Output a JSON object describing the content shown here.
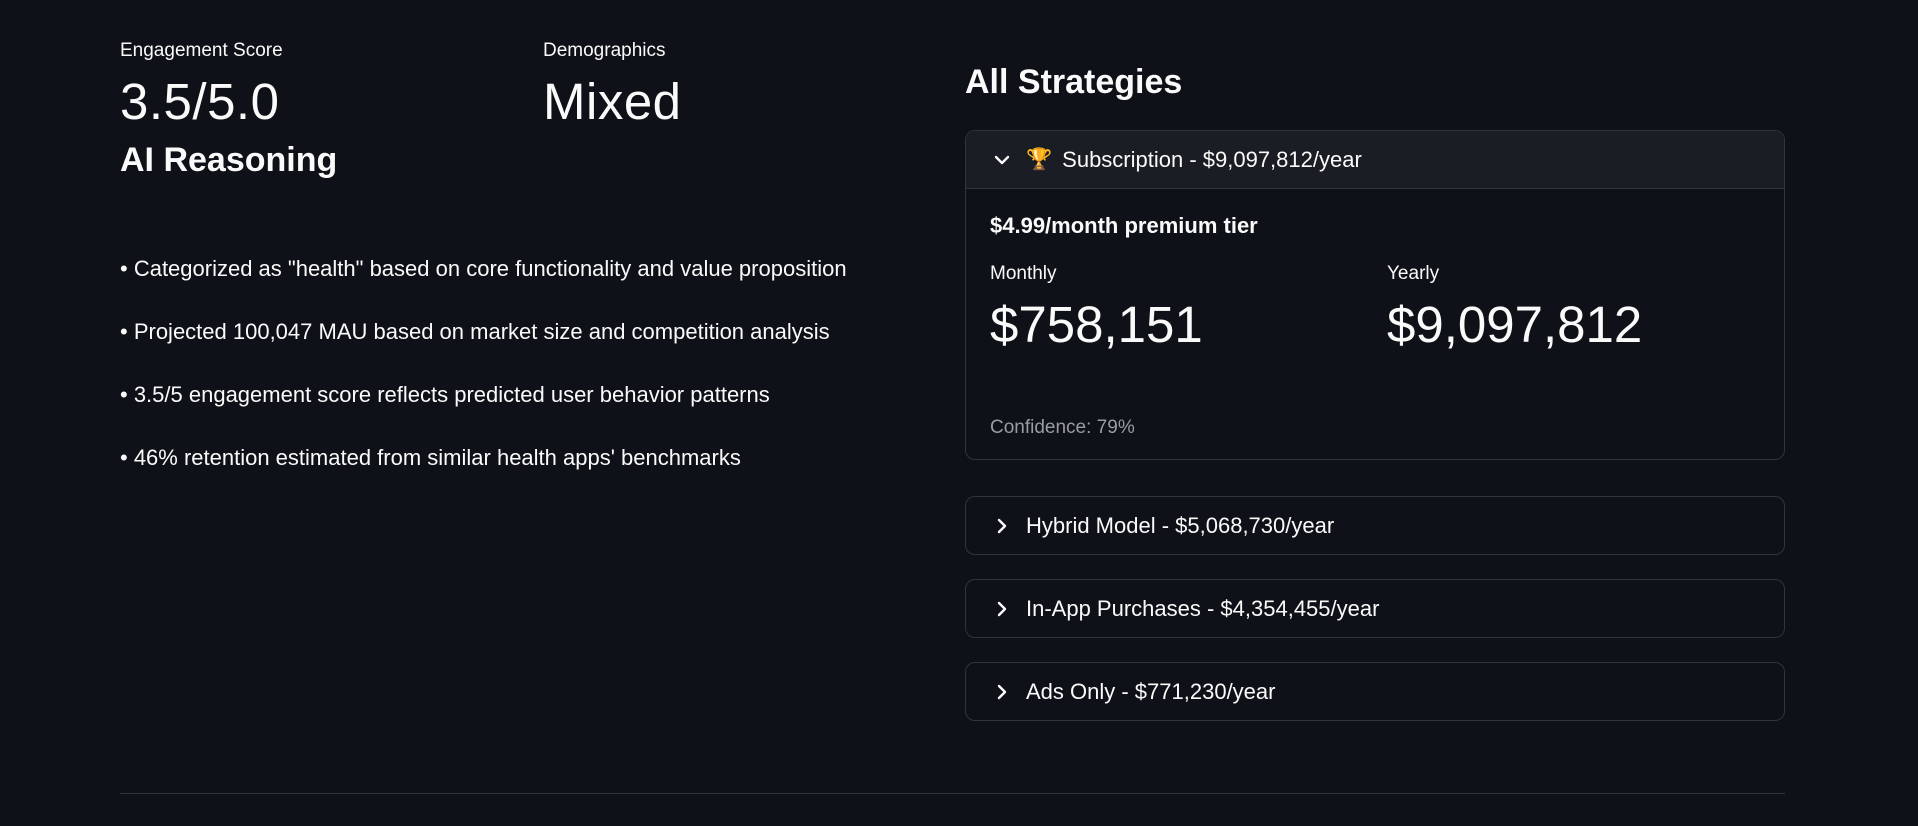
{
  "metrics": {
    "engagement": {
      "label": "Engagement Score",
      "value": "3.5/5.0"
    },
    "demographics": {
      "label": "Demographics",
      "value": "Mixed"
    }
  },
  "reasoning": {
    "title": "AI Reasoning",
    "items": [
      "• Categorized as \"health\" based on core functionality and value proposition",
      "• Projected 100,047 MAU based on market size and competition analysis",
      "• 3.5/5 engagement score reflects predicted user behavior patterns",
      "• 46% retention estimated from similar health apps' benchmarks"
    ]
  },
  "strategies": {
    "title": "All Strategies",
    "items": [
      {
        "icon": "trophy-icon",
        "glyph": "🏆",
        "label": "Subscription - $9,097,812/year",
        "expanded": true,
        "tier": "$4.99/month premium tier",
        "monthly_label": "Monthly",
        "monthly_value": "$758,151",
        "yearly_label": "Yearly",
        "yearly_value": "$9,097,812",
        "confidence": "Confidence: 79%"
      },
      {
        "label": "Hybrid Model - $5,068,730/year",
        "expanded": false
      },
      {
        "label": "In-App Purchases - $4,354,455/year",
        "expanded": false
      },
      {
        "label": "Ads Only - $771,230/year",
        "expanded": false
      }
    ]
  },
  "colors": {
    "background": "#0e1117",
    "text": "#fafafa",
    "border": "#31333f",
    "muted": "#9a9ca3"
  }
}
